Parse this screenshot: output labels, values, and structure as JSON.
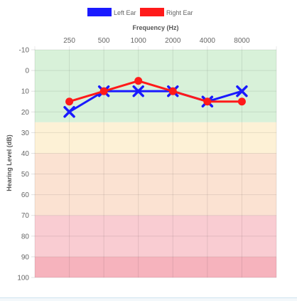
{
  "chart_data": {
    "type": "line",
    "title": "",
    "xlabel": "Frequency (Hz)",
    "ylabel": "Hearing Level (dB)",
    "categories": [
      "250",
      "500",
      "1000",
      "2000",
      "4000",
      "8000"
    ],
    "y_ticks": [
      "-10",
      "0",
      "10",
      "20",
      "30",
      "40",
      "50",
      "60",
      "70",
      "80",
      "90",
      "100"
    ],
    "ylim": [
      -10,
      100
    ],
    "y_reversed": true,
    "x_axis_position": "top",
    "grid": true,
    "legend_position": "top-center",
    "series": [
      {
        "name": "Left Ear",
        "marker": "x",
        "color": "#1a1aff",
        "values": [
          20,
          10,
          10,
          10,
          15,
          10
        ]
      },
      {
        "name": "Right Ear",
        "marker": "circle",
        "color": "#ff1a1a",
        "values": [
          15,
          10,
          5,
          10,
          15,
          15
        ]
      }
    ],
    "bands": [
      {
        "from": -10,
        "to": 25,
        "color": "#d8f1d9"
      },
      {
        "from": 25,
        "to": 40,
        "color": "#fdf1d6"
      },
      {
        "from": 40,
        "to": 70,
        "color": "#fbe2d2"
      },
      {
        "from": 70,
        "to": 90,
        "color": "#f9ccd2"
      },
      {
        "from": 90,
        "to": 100,
        "color": "#f6b3bd"
      }
    ]
  }
}
